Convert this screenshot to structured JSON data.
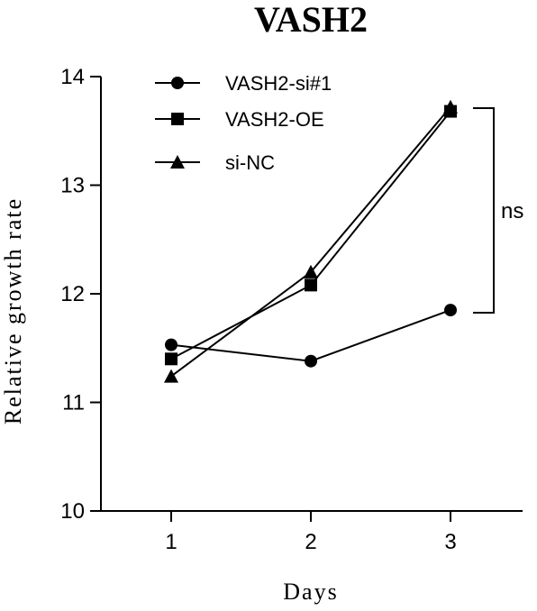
{
  "chart_data": {
    "type": "line",
    "title": "VASH2",
    "xlabel": "Days",
    "ylabel": "Relative growth rate",
    "x": [
      1,
      2,
      3
    ],
    "xticks": [
      "1",
      "2",
      "3"
    ],
    "yticks": [
      "10",
      "11",
      "12",
      "13",
      "14"
    ],
    "ylim": [
      10,
      14
    ],
    "series": [
      {
        "name": "VASH2-si#1",
        "marker": "circle",
        "values": [
          11.53,
          11.38,
          11.85
        ]
      },
      {
        "name": "VASH2-OE",
        "marker": "square",
        "values": [
          11.4,
          12.08,
          13.68
        ]
      },
      {
        "name": "si-NC",
        "marker": "triangle",
        "values": [
          11.24,
          12.2,
          13.72
        ]
      }
    ],
    "annotation": "ns",
    "legend_position": "top-left",
    "grid": false
  }
}
